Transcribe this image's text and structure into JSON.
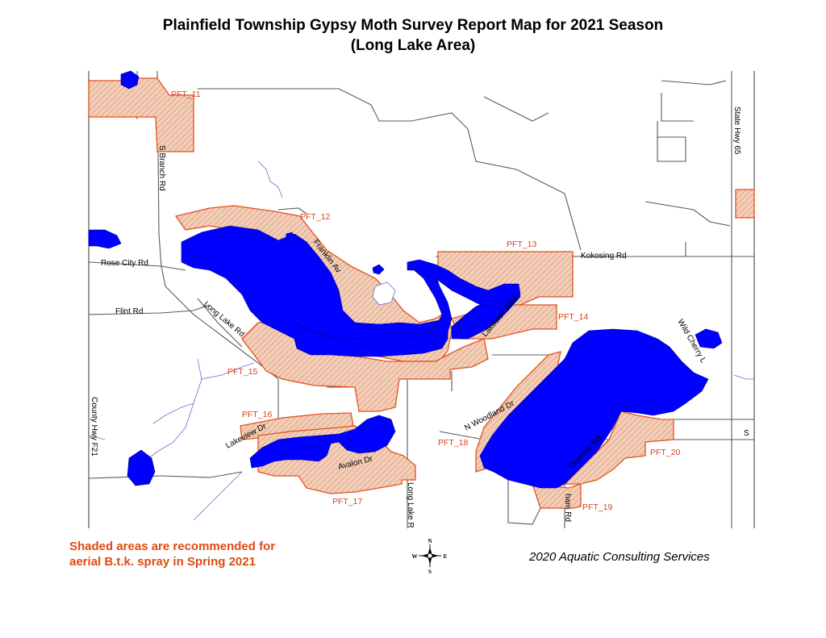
{
  "title": {
    "line1": "Plainfield Township Gypsy Moth Survey Report Map for 2021 Season",
    "line2": "(Long Lake Area)"
  },
  "note": {
    "line1": "Shaded areas are recommended for",
    "line2": "aerial B.t.k. spray in Spring 2021"
  },
  "credit": "2020 Aquatic Consulting Services",
  "compass": {
    "n": "N",
    "s": "S",
    "e": "E",
    "w": "W"
  },
  "blocks": [
    "PFT_11",
    "PFT_12",
    "PFT_13",
    "PFT_14",
    "PFT_15",
    "PFT_16",
    "PFT_17",
    "PFT_18",
    "PFT_19",
    "PFT_20"
  ],
  "roads": {
    "s_branch": "S Branch Rd",
    "rose_city": "Rose City Rd",
    "flint": "Flint Rd",
    "long_lake_rd": "Long Lake Rd",
    "county_hwy": "County Hwy F21",
    "franklin": "Franklin Av",
    "kokosing": "Kokosing Rd",
    "lakeside": "Lakeside Blvd",
    "state_hwy": "State Hwy 65",
    "wild_cherry": "Wild Cherry L",
    "n_woodland": "N Woodland Dr",
    "lakeview": "Lakeview Dr",
    "avalon": "Avalon Dr",
    "long_lake_r": "Long Lake R",
    "oconnor": "Oconnor Rd",
    "ham": "ham Rd",
    "s_edge": "S"
  },
  "colors": {
    "water": "#0000ff",
    "spray_block_outline": "#e5501f",
    "spray_block_fill": "#f2c7b0",
    "label_red": "#e04a14",
    "road": "#5a5a5a"
  }
}
